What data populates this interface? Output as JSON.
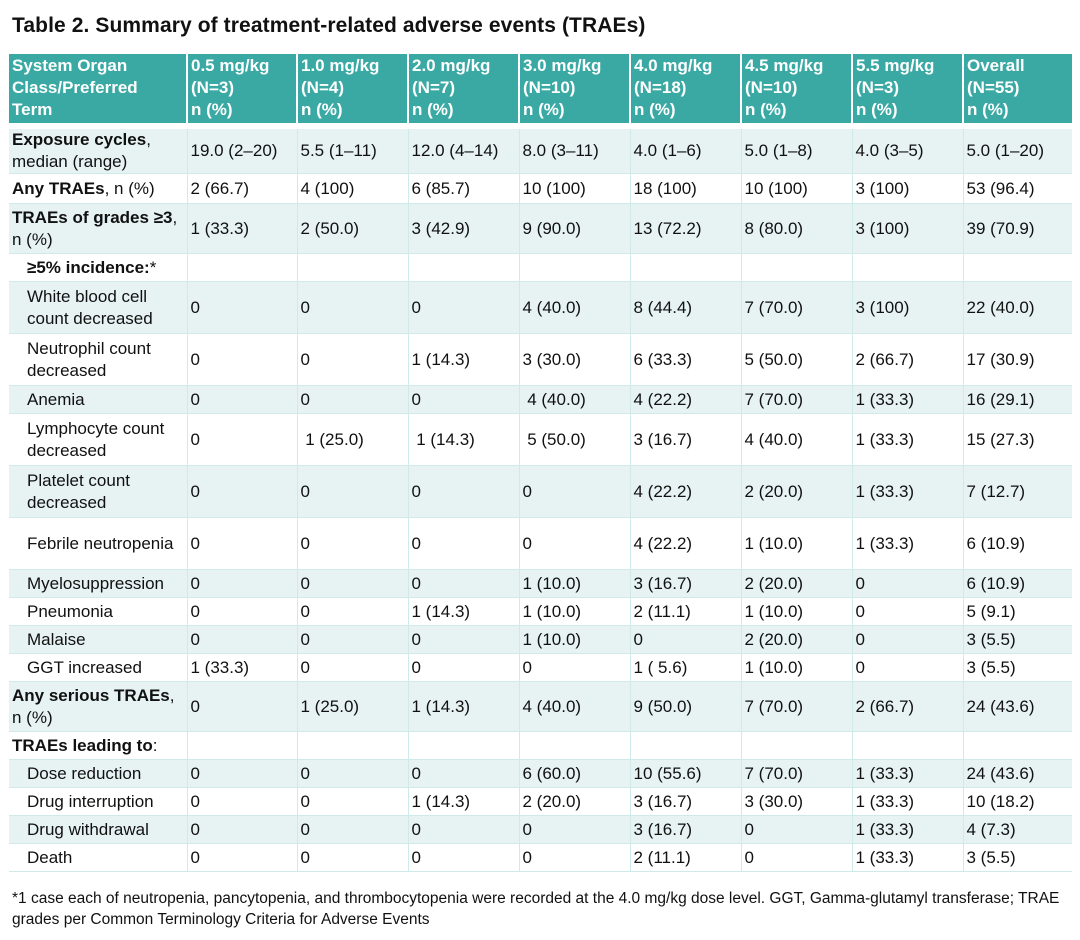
{
  "title": "Table 2. Summary of treatment-related adverse events (TRAEs)",
  "headers": [
    [
      "System Organ",
      "Class/Preferred",
      "Term"
    ],
    [
      "0.5 mg/kg",
      "(N=3)",
      "n (%)"
    ],
    [
      "1.0 mg/kg",
      "(N=4)",
      "n (%)"
    ],
    [
      "2.0 mg/kg",
      "(N=7)",
      "n (%)"
    ],
    [
      "3.0 mg/kg",
      "(N=10)",
      "n (%)"
    ],
    [
      "4.0 mg/kg",
      "(N=18)",
      "n (%)"
    ],
    [
      "4.5 mg/kg",
      "(N=10)",
      "n (%)"
    ],
    [
      "5.5 mg/kg",
      "(N=3)",
      "n (%)"
    ],
    [
      "Overall",
      "(N=55)",
      "n (%)"
    ]
  ],
  "rows": [
    {
      "bold": "Exposure cycles",
      "rest": ", median (range)",
      "sub": false,
      "h": 46,
      "cells": [
        "19.0 (2–20)",
        "5.5 (1–11)",
        "12.0 (4–14)",
        "8.0 (3–11)",
        "4.0 (1–6)",
        "5.0 (1–8)",
        "4.0 (3–5)",
        "5.0 (1–20)"
      ]
    },
    {
      "bold": "Any TRAEs",
      "rest": ", n (%)",
      "sub": false,
      "h": 30,
      "cells": [
        "2 (66.7)",
        "4 (100)",
        "6 (85.7)",
        "10 (100)",
        "18 (100)",
        "10 (100)",
        "3 (100)",
        "53 (96.4)"
      ]
    },
    {
      "bold": "TRAEs of grades ≥3",
      "rest": ", n (%)",
      "sub": false,
      "h": 50,
      "cells": [
        "1 (33.3)",
        "2 (50.0)",
        "3 (42.9)",
        "9 (90.0)",
        "13 (72.2)",
        "8 (80.0)",
        "3 (100)",
        "39 (70.9)"
      ]
    },
    {
      "bold": "≥5% incidence:",
      "rest": "*",
      "sub": true,
      "h": 28,
      "cells": [
        "",
        "",
        "",
        "",
        "",
        "",
        "",
        ""
      ]
    },
    {
      "bold": "",
      "rest": "White blood cell count decreased",
      "sub": true,
      "h": 52,
      "cells": [
        "0",
        "0",
        "0",
        "4 (40.0)",
        "8 (44.4)",
        "7 (70.0)",
        "3 (100)",
        "22 (40.0)"
      ]
    },
    {
      "bold": "",
      "rest": "Neutrophil count decreased",
      "sub": true,
      "h": 52,
      "cells": [
        "0",
        "0",
        "1 (14.3)",
        "3 (30.0)",
        "6 (33.3)",
        "5 (50.0)",
        "2 (66.7)",
        "17 (30.9)"
      ]
    },
    {
      "bold": "",
      "rest": "Anemia",
      "sub": true,
      "h": 28,
      "cells": [
        "0",
        "0",
        "0",
        " 4 (40.0)",
        "4 (22.2)",
        "7 (70.0)",
        "1 (33.3)",
        "16 (29.1)"
      ]
    },
    {
      "bold": "",
      "rest": "Lymphocyte count decreased",
      "sub": true,
      "h": 52,
      "cells": [
        "0",
        " 1 (25.0)",
        " 1 (14.3)",
        " 5 (50.0)",
        "3 (16.7)",
        "4 (40.0)",
        "1 (33.3)",
        "15 (27.3)"
      ]
    },
    {
      "bold": "",
      "rest": "Platelet count decreased",
      "sub": true,
      "h": 52,
      "cells": [
        "0",
        "0",
        "0",
        "0",
        "4 (22.2)",
        "2 (20.0)",
        "1 (33.3)",
        "7 (12.7)"
      ]
    },
    {
      "bold": "",
      "rest": "Febrile neutropenia",
      "sub": true,
      "h": 52,
      "cells": [
        "0",
        "0",
        "0",
        "0",
        "4 (22.2)",
        "1 (10.0)",
        "1 (33.3)",
        "6 (10.9)"
      ]
    },
    {
      "bold": "",
      "rest": "Myelosuppression",
      "sub": true,
      "h": 28,
      "cells": [
        "0",
        "0",
        "0",
        "1 (10.0)",
        "3 (16.7)",
        "2 (20.0)",
        "0",
        "6 (10.9)"
      ]
    },
    {
      "bold": "",
      "rest": "Pneumonia",
      "sub": true,
      "h": 28,
      "cells": [
        "0",
        "0",
        "1 (14.3)",
        "1 (10.0)",
        "2 (11.1)",
        "1 (10.0)",
        "0",
        "5 (9.1)"
      ]
    },
    {
      "bold": "",
      "rest": "Malaise",
      "sub": true,
      "h": 28,
      "cells": [
        "0",
        "0",
        "0",
        "1 (10.0)",
        "0",
        "2 (20.0)",
        "0",
        "3 (5.5)"
      ]
    },
    {
      "bold": "",
      "rest": "GGT increased",
      "sub": true,
      "h": 28,
      "cells": [
        "1 (33.3)",
        "0",
        "0",
        "0",
        "1 ( 5.6)",
        "1 (10.0)",
        "0",
        "3 (5.5)"
      ]
    },
    {
      "bold": "Any serious TRAEs",
      "rest": ", n (%)",
      "sub": false,
      "h": 50,
      "cells": [
        "0",
        "1 (25.0)",
        "1 (14.3)",
        "4 (40.0)",
        "9 (50.0)",
        "7 (70.0)",
        "2 (66.7)",
        "24 (43.6)"
      ]
    },
    {
      "bold": "TRAEs leading to",
      "rest": ":",
      "sub": false,
      "h": 28,
      "cells": [
        "",
        "",
        "",
        "",
        "",
        "",
        "",
        ""
      ]
    },
    {
      "bold": "",
      "rest": "Dose reduction",
      "sub": true,
      "h": 28,
      "cells": [
        "0",
        "0",
        "0",
        "6 (60.0)",
        "10 (55.6)",
        "7 (70.0)",
        "1 (33.3)",
        "24 (43.6)"
      ]
    },
    {
      "bold": "",
      "rest": "Drug interruption",
      "sub": true,
      "h": 28,
      "cells": [
        "0",
        "0",
        "1 (14.3)",
        "2 (20.0)",
        "3 (16.7)",
        "3 (30.0)",
        "1 (33.3)",
        "10 (18.2)"
      ]
    },
    {
      "bold": "",
      "rest": "Drug withdrawal",
      "sub": true,
      "h": 28,
      "cells": [
        "0",
        "0",
        "0",
        "0",
        "3 (16.7)",
        "0",
        "1 (33.3)",
        "4 (7.3)"
      ]
    },
    {
      "bold": "",
      "rest": "Death",
      "sub": true,
      "h": 28,
      "cells": [
        "0",
        "0",
        "0",
        "0",
        "2 (11.1)",
        "0",
        "1 (33.3)",
        "3 (5.5)"
      ]
    }
  ],
  "footnote": "*1 case each of neutropenia, pancytopenia, and thrombocytopenia were recorded at the 4.0 mg/kg dose level. GGT, Gamma-glutamyl transferase; TRAE grades per Common Terminology Criteria for Adverse Events"
}
